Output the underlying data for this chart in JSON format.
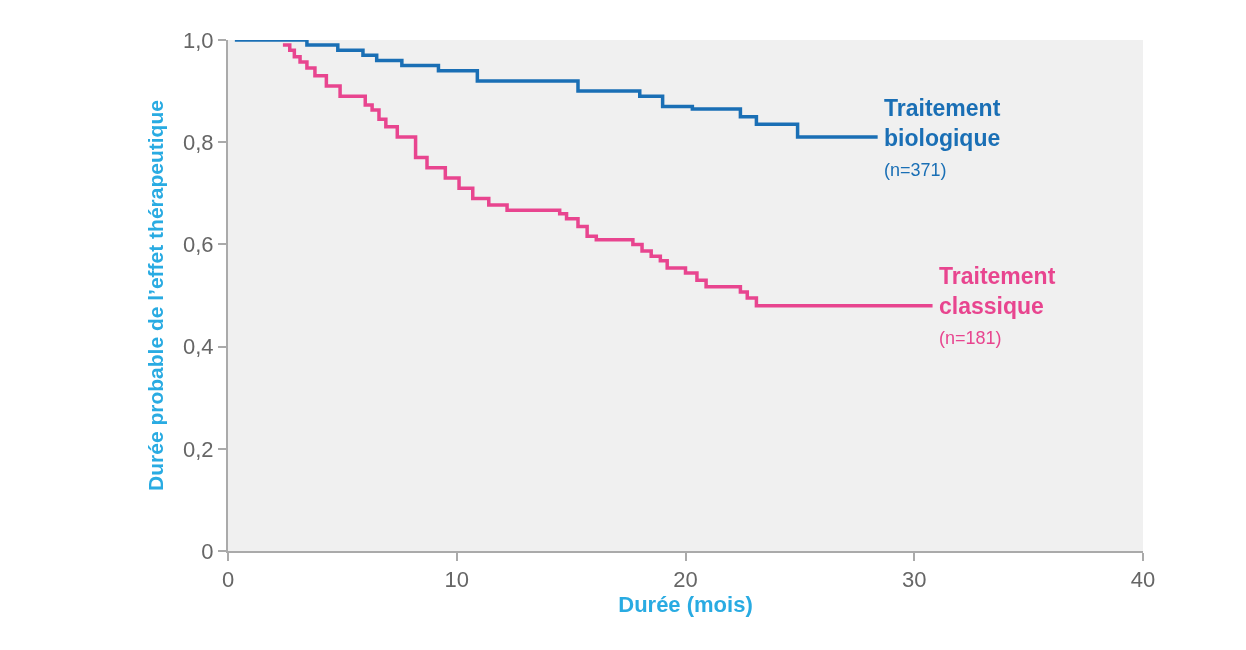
{
  "chart_data": {
    "type": "step",
    "xlabel": "Durée (mois)",
    "ylabel": "Durée probable de l’effet thérapeutique",
    "xlim": [
      0,
      40
    ],
    "xticks": [
      0,
      10,
      20,
      30,
      40
    ],
    "ylim": [
      0,
      1.0
    ],
    "yticks": [
      0,
      {
        "value": 0.2,
        "label": "0,2"
      },
      {
        "value": 0.4,
        "label": "0,4"
      },
      {
        "value": 0.6,
        "label": "0,6"
      },
      {
        "value": 0.8,
        "label": "0,8"
      },
      {
        "value": 1.0,
        "label": "1,0"
      }
    ],
    "grid": false,
    "legend": false,
    "line_style": "solid",
    "marker": "none",
    "series": [
      {
        "name": "Traitement biologique (n=371)",
        "color": "#1a6fb5",
        "x": [
          0.3,
          3.45,
          4.8,
          5.9,
          6.5,
          7.6,
          9.2,
          10.9,
          12.9,
          15.3,
          18.0,
          19.0,
          20.3,
          22.4,
          23.1,
          24.9,
          28.4
        ],
        "values": [
          1.0,
          0.99,
          0.98,
          0.97,
          0.96,
          0.95,
          0.94,
          0.92,
          0.92,
          0.9,
          0.89,
          0.87,
          0.865,
          0.85,
          0.835,
          0.81,
          0.81
        ]
      },
      {
        "name": "Traitement classique (n=181)",
        "color": "#e8458f",
        "x": [
          2.4,
          2.7,
          2.9,
          3.15,
          3.45,
          3.8,
          4.3,
          4.9,
          6.0,
          6.3,
          6.6,
          6.9,
          7.4,
          8.2,
          8.7,
          9.5,
          10.1,
          10.7,
          11.4,
          12.2,
          14.5,
          14.8,
          15.3,
          15.7,
          16.1,
          17.7,
          18.1,
          18.5,
          18.9,
          19.2,
          20.0,
          20.5,
          20.9,
          22.4,
          22.7,
          23.1,
          30.8
        ],
        "values": [
          0.99,
          0.98,
          0.967,
          0.957,
          0.945,
          0.93,
          0.91,
          0.89,
          0.873,
          0.863,
          0.845,
          0.83,
          0.81,
          0.77,
          0.75,
          0.73,
          0.71,
          0.69,
          0.677,
          0.667,
          0.66,
          0.65,
          0.635,
          0.616,
          0.609,
          0.6,
          0.587,
          0.577,
          0.568,
          0.554,
          0.544,
          0.53,
          0.517,
          0.507,
          0.495,
          0.48,
          0.48
        ]
      }
    ]
  }
}
